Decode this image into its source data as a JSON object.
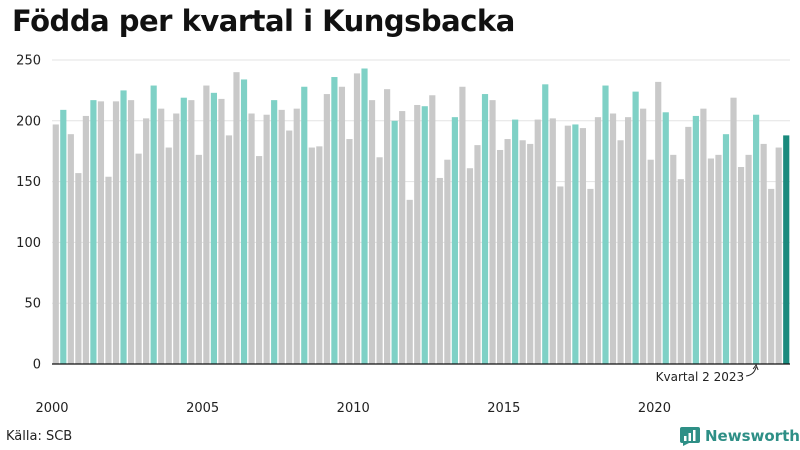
{
  "colors": {
    "primary": "#c9c9c9",
    "highlight": "#7fd1c6",
    "latest": "#1a8a7d",
    "brand": "#2e8f86"
  },
  "source": "Källa: SCB",
  "brand": {
    "name": "Newsworthy",
    "icon": "newsworthy-logo-icon"
  },
  "chart_data": {
    "type": "bar",
    "title": "Födda per kvartal i Kungsbacka",
    "xlabel": "",
    "ylabel": "",
    "ylim": [
      0,
      250
    ],
    "yticks": [
      0,
      50,
      100,
      150,
      200,
      250
    ],
    "grid": true,
    "xtick_labels": [
      {
        "index": 0,
        "label": "2000"
      },
      {
        "index": 20,
        "label": "2005"
      },
      {
        "index": 40,
        "label": "2010"
      },
      {
        "index": 60,
        "label": "2015"
      },
      {
        "index": 80,
        "label": "2020"
      }
    ],
    "highlight_quarter": 2,
    "annotation": {
      "text": "Kvartal 2 2023",
      "index": 93
    },
    "categories": [
      "2000 Q1",
      "2000 Q2",
      "2000 Q3",
      "2000 Q4",
      "2001 Q1",
      "2001 Q2",
      "2001 Q3",
      "2001 Q4",
      "2002 Q1",
      "2002 Q2",
      "2002 Q3",
      "2002 Q4",
      "2003 Q1",
      "2003 Q2",
      "2003 Q3",
      "2003 Q4",
      "2004 Q1",
      "2004 Q2",
      "2004 Q3",
      "2004 Q4",
      "2005 Q1",
      "2005 Q2",
      "2005 Q3",
      "2005 Q4",
      "2006 Q1",
      "2006 Q2",
      "2006 Q3",
      "2006 Q4",
      "2007 Q1",
      "2007 Q2",
      "2007 Q3",
      "2007 Q4",
      "2008 Q1",
      "2008 Q2",
      "2008 Q3",
      "2008 Q4",
      "2009 Q1",
      "2009 Q2",
      "2009 Q3",
      "2009 Q4",
      "2010 Q1",
      "2010 Q2",
      "2010 Q3",
      "2010 Q4",
      "2011 Q1",
      "2011 Q2",
      "2011 Q3",
      "2011 Q4",
      "2012 Q1",
      "2012 Q2",
      "2012 Q3",
      "2012 Q4",
      "2013 Q1",
      "2013 Q2",
      "2013 Q3",
      "2013 Q4",
      "2014 Q1",
      "2014 Q2",
      "2014 Q3",
      "2014 Q4",
      "2015 Q1",
      "2015 Q2",
      "2015 Q3",
      "2015 Q4",
      "2016 Q1",
      "2016 Q2",
      "2016 Q3",
      "2016 Q4",
      "2017 Q1",
      "2017 Q2",
      "2017 Q3",
      "2017 Q4",
      "2018 Q1",
      "2018 Q2",
      "2018 Q3",
      "2018 Q4",
      "2019 Q1",
      "2019 Q2",
      "2019 Q3",
      "2019 Q4",
      "2020 Q1",
      "2020 Q2",
      "2020 Q3",
      "2020 Q4",
      "2021 Q1",
      "2021 Q2",
      "2021 Q3",
      "2021 Q4",
      "2022 Q1",
      "2022 Q2",
      "2022 Q3",
      "2022 Q4",
      "2023 Q1",
      "2023 Q2",
      "2023 Q3",
      "2023 Q4",
      "2024 Q1",
      "2024 Q2"
    ],
    "values": [
      197,
      209,
      189,
      157,
      204,
      217,
      216,
      154,
      216,
      225,
      217,
      173,
      202,
      229,
      210,
      178,
      206,
      219,
      217,
      172,
      229,
      223,
      218,
      188,
      240,
      234,
      206,
      171,
      205,
      217,
      209,
      192,
      210,
      228,
      178,
      179,
      222,
      236,
      228,
      185,
      239,
      243,
      217,
      170,
      226,
      200,
      208,
      135,
      213,
      212,
      221,
      153,
      168,
      203,
      228,
      161,
      180,
      222,
      217,
      176,
      185,
      201,
      184,
      181,
      201,
      230,
      202,
      146,
      196,
      197,
      194,
      144,
      203,
      229,
      206,
      184,
      203,
      224,
      210,
      168,
      232,
      207,
      172,
      152,
      195,
      204,
      210,
      169,
      172,
      189,
      219,
      162,
      172,
      205,
      181,
      144,
      178,
      188
    ]
  }
}
